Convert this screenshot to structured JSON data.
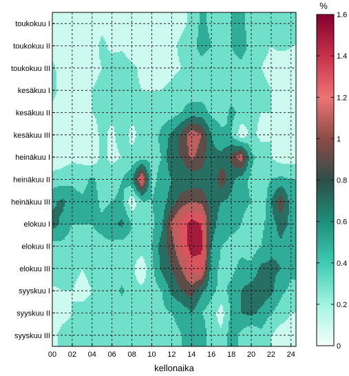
{
  "chart_data": {
    "type": "heatmap",
    "subtype": "filled-contour",
    "title": "",
    "xlabel": "kellonaika",
    "ylabel": "",
    "x": [
      0,
      1,
      2,
      3,
      4,
      5,
      6,
      7,
      8,
      9,
      10,
      11,
      12,
      13,
      14,
      15,
      16,
      17,
      18,
      19,
      20,
      21,
      22,
      23,
      24
    ],
    "x_tick_labels": [
      "00",
      "02",
      "04",
      "06",
      "08",
      "10",
      "12",
      "14",
      "16",
      "18",
      "20",
      "22",
      "24"
    ],
    "xlim": [
      0,
      24.5
    ],
    "y_categories": [
      "toukokuu I",
      "toukokuu II",
      "toukokuu III",
      "kesäkuu I",
      "kesäkuu II",
      "kesäkuu III",
      "heinäkuu I",
      "heinäkuu II",
      "heinäkuu III",
      "elokuu I",
      "elokuu II",
      "elokuu III",
      "syyskuu I",
      "syyskuu II",
      "syyskuu III"
    ],
    "grid": true,
    "colorbar": {
      "unit": "%",
      "range": [
        0,
        1.6
      ],
      "tick_values": [
        0,
        0.2,
        0.4,
        0.6,
        0.8,
        1,
        1.2,
        1.4,
        1.6
      ],
      "tick_labels": [
        "0",
        "0.2",
        "0.4",
        "0.6",
        "0.8",
        "1",
        "1.2",
        "1.4",
        "1.6"
      ],
      "colormap": [
        {
          "v": 0.0,
          "color": "#f5fffb"
        },
        {
          "v": 0.2,
          "color": "#a3f4e2"
        },
        {
          "v": 0.4,
          "color": "#3fcbb3"
        },
        {
          "v": 0.6,
          "color": "#1f8f7c"
        },
        {
          "v": 0.8,
          "color": "#2d4f48"
        },
        {
          "v": 1.0,
          "color": "#8c4a48"
        },
        {
          "v": 1.2,
          "color": "#ec7474"
        },
        {
          "v": 1.4,
          "color": "#c8334b"
        },
        {
          "v": 1.6,
          "color": "#86002d"
        }
      ]
    },
    "values": [
      [
        0.1,
        0.05,
        0.05,
        0.05,
        0.05,
        0.15,
        0.1,
        0.1,
        0.05,
        0.05,
        0.05,
        0.05,
        0.1,
        0.15,
        0.25,
        0.45,
        0.35,
        0.3,
        0.4,
        0.45,
        0.3,
        0.2,
        0.2,
        0.3,
        0.2
      ],
      [
        0.1,
        0.05,
        0.05,
        0.1,
        0.1,
        0.25,
        0.15,
        0.15,
        0.05,
        0.05,
        0.1,
        0.1,
        0.15,
        0.25,
        0.3,
        0.5,
        0.4,
        0.3,
        0.4,
        0.55,
        0.3,
        0.25,
        0.2,
        0.25,
        0.2
      ],
      [
        0.25,
        0.1,
        0.05,
        0.1,
        0.15,
        0.2,
        0.3,
        0.35,
        0.25,
        0.15,
        0.15,
        0.1,
        0.15,
        0.2,
        0.25,
        0.3,
        0.25,
        0.3,
        0.3,
        0.3,
        0.25,
        0.2,
        0.15,
        0.05,
        0.15
      ],
      [
        0.25,
        0.15,
        0.1,
        0.15,
        0.2,
        0.25,
        0.3,
        0.3,
        0.25,
        0.2,
        0.2,
        0.2,
        0.25,
        0.3,
        0.3,
        0.3,
        0.3,
        0.4,
        0.3,
        0.3,
        0.3,
        0.25,
        0.2,
        0.05,
        0.15
      ],
      [
        0.15,
        0.1,
        0.1,
        0.15,
        0.2,
        0.25,
        0.25,
        0.25,
        0.25,
        0.25,
        0.25,
        0.3,
        0.3,
        0.4,
        0.5,
        0.5,
        0.35,
        0.3,
        0.45,
        0.35,
        0.25,
        0.2,
        0.2,
        0.15,
        0.15
      ],
      [
        0.05,
        0.05,
        0.1,
        0.15,
        0.1,
        0.25,
        0.15,
        0.3,
        0.15,
        0.25,
        0.3,
        0.45,
        0.65,
        0.85,
        1.15,
        1.0,
        0.6,
        0.45,
        0.4,
        0.05,
        0.25,
        0.15,
        0.2,
        0.1,
        0.2
      ],
      [
        0.05,
        0.1,
        0.15,
        0.15,
        0.05,
        0.25,
        0.15,
        0.2,
        0.25,
        0.3,
        0.35,
        0.4,
        0.8,
        0.8,
        1.05,
        0.9,
        0.65,
        0.65,
        0.85,
        1.15,
        0.45,
        0.3,
        0.2,
        0.1,
        0.1
      ],
      [
        0.3,
        0.3,
        0.35,
        0.3,
        0.45,
        0.3,
        0.3,
        0.4,
        0.55,
        1.3,
        0.35,
        0.45,
        0.6,
        0.65,
        0.65,
        0.7,
        0.6,
        0.95,
        0.65,
        0.5,
        0.35,
        0.3,
        0.4,
        0.45,
        0.4
      ],
      [
        0.55,
        0.65,
        0.5,
        0.45,
        0.5,
        0.35,
        0.4,
        0.45,
        0.05,
        0.35,
        0.4,
        0.5,
        0.7,
        0.9,
        1.0,
        0.95,
        0.7,
        0.6,
        0.55,
        0.45,
        0.4,
        0.2,
        0.6,
        0.95,
        0.5
      ],
      [
        0.7,
        0.55,
        0.4,
        0.4,
        0.4,
        0.45,
        0.55,
        0.65,
        0.4,
        0.2,
        0.35,
        0.55,
        1.05,
        1.3,
        1.5,
        1.4,
        0.7,
        0.5,
        0.45,
        0.4,
        0.3,
        0.35,
        0.5,
        0.7,
        0.55
      ],
      [
        0.3,
        0.35,
        0.3,
        0.25,
        0.35,
        0.35,
        0.35,
        0.3,
        0.3,
        0.3,
        0.4,
        0.7,
        0.9,
        1.25,
        1.5,
        1.45,
        0.6,
        0.4,
        0.35,
        0.35,
        0.3,
        0.4,
        0.55,
        0.55,
        0.4
      ],
      [
        0.4,
        0.3,
        0.25,
        0.2,
        0.25,
        0.35,
        0.3,
        0.25,
        0.25,
        0.05,
        0.35,
        0.65,
        0.8,
        1.0,
        1.3,
        1.3,
        0.5,
        0.35,
        0.35,
        0.45,
        0.45,
        0.65,
        0.65,
        0.6,
        0.45
      ],
      [
        0.15,
        0.2,
        0.2,
        0.15,
        0.2,
        0.3,
        0.25,
        0.45,
        0.25,
        0.25,
        0.3,
        0.4,
        0.65,
        0.8,
        0.9,
        0.65,
        0.45,
        0.35,
        0.45,
        0.6,
        0.7,
        0.75,
        0.65,
        0.45,
        0.35
      ],
      [
        0.1,
        0.15,
        0.2,
        0.25,
        0.25,
        0.2,
        0.25,
        0.25,
        0.2,
        0.2,
        0.25,
        0.35,
        0.4,
        0.45,
        0.6,
        0.4,
        0.3,
        0.1,
        0.45,
        0.6,
        0.65,
        0.55,
        0.4,
        0.3,
        0.2
      ],
      [
        0.15,
        0.25,
        0.25,
        0.35,
        0.25,
        0.2,
        0.2,
        0.25,
        0.3,
        0.25,
        0.2,
        0.35,
        0.35,
        0.4,
        0.4,
        0.55,
        0.25,
        0.25,
        0.5,
        0.35,
        0.2,
        0.35,
        0.2,
        0.1,
        0.1
      ]
    ]
  }
}
